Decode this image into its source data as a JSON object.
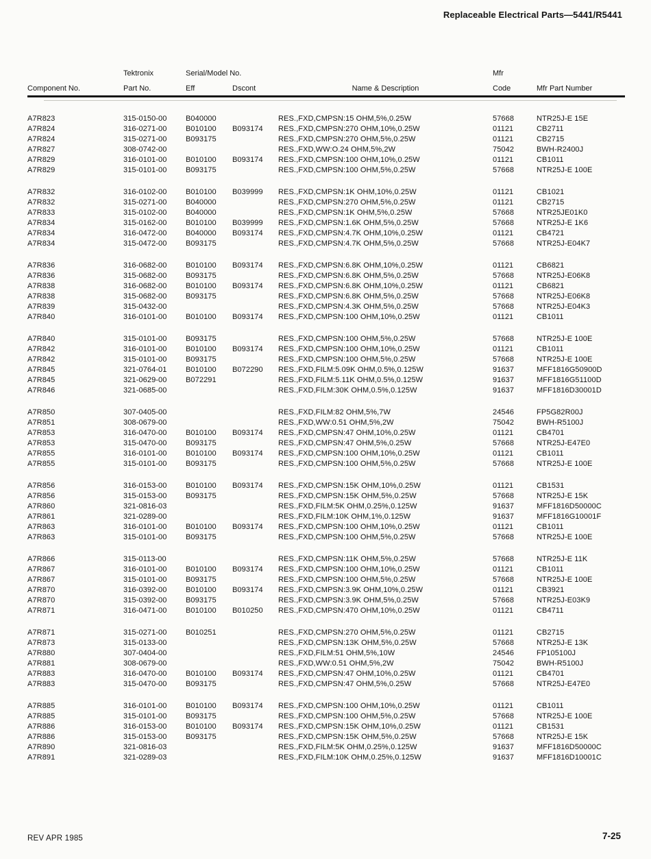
{
  "colors": {
    "ink": "#141414",
    "paper": "#fbfbf9"
  },
  "header": {
    "title": "Replaceable Electrical Parts—5441/R5441"
  },
  "footer": {
    "left": "REV APR 1985",
    "right": "7-25"
  },
  "table": {
    "headers": {
      "component_no": "Component No.",
      "tektronix": "Tektronix",
      "part_no": "Part No.",
      "serial_model": "Serial/Model No.",
      "eff": "Eff",
      "dscont": "Dscont",
      "name_description": "Name & Description",
      "mfr": "Mfr",
      "code": "Code",
      "mfr_part_number": "Mfr Part Number"
    },
    "groups": [
      [
        [
          "A7R823",
          "315-0150-00",
          "B040000",
          "",
          "RES.,FXD,CMPSN:15 OHM,5%,0.25W",
          "57668",
          "NTR25J-E 15E"
        ],
        [
          "A7R824",
          "316-0271-00",
          "B010100",
          "B093174",
          "RES.,FXD,CMPSN:270 OHM,10%,0.25W",
          "01121",
          "CB2711"
        ],
        [
          "A7R824",
          "315-0271-00",
          "B093175",
          "",
          "RES.,FXD,CMPSN:270 OHM,5%,0.25W",
          "01121",
          "CB2715"
        ],
        [
          "A7R827",
          "308-0742-00",
          "",
          "",
          "RES.,FXD,WW:O.24 OHM,5%,2W",
          "75042",
          "BWH-R2400J"
        ],
        [
          "A7R829",
          "316-0101-00",
          "B010100",
          "B093174",
          "RES.,FXD,CMPSN:100 OHM,10%,0.25W",
          "01121",
          "CB1011"
        ],
        [
          "A7R829",
          "315-0101-00",
          "B093175",
          "",
          "RES.,FXD,CMPSN:100 OHM,5%,0.25W",
          "57668",
          "NTR25J-E 100E"
        ]
      ],
      [
        [
          "A7R832",
          "316-0102-00",
          "B010100",
          "B039999",
          "RES.,FXD,CMPSN:1K OHM,10%,0.25W",
          "01121",
          "CB1021"
        ],
        [
          "A7R832",
          "315-0271-00",
          "B040000",
          "",
          "RES.,FXD,CMPSN:270 OHM,5%,0.25W",
          "01121",
          "CB2715"
        ],
        [
          "A7R833",
          "315-0102-00",
          "B040000",
          "",
          "RES.,FXD,CMPSN:1K OHM,5%,0.25W",
          "57668",
          "NTR25JE01K0"
        ],
        [
          "A7R834",
          "315-0162-00",
          "B010100",
          "B039999",
          "RES.,FXD,CMPSN:1.6K OHM,5%,0.25W",
          "57668",
          "NTR25J-E 1K6"
        ],
        [
          "A7R834",
          "316-0472-00",
          "B040000",
          "B093174",
          "RES.,FXD,CMPSN:4.7K OHM,10%,0.25W",
          "01121",
          "CB4721"
        ],
        [
          "A7R834",
          "315-0472-00",
          "B093175",
          "",
          "RES.,FXD,CMPSN:4.7K OHM,5%,0.25W",
          "57668",
          "NTR25J-E04K7"
        ]
      ],
      [
        [
          "A7R836",
          "316-0682-00",
          "B010100",
          "B093174",
          "RES.,FXD,CMPSN:6.8K OHM,10%,0.25W",
          "01121",
          "CB6821"
        ],
        [
          "A7R836",
          "315-0682-00",
          "B093175",
          "",
          "RES.,FXD,CMPSN:6.8K OHM,5%,0.25W",
          "57668",
          "NTR25J-E06K8"
        ],
        [
          "A7R838",
          "316-0682-00",
          "B010100",
          "B093174",
          "RES.,FXD,CMPSN:6.8K OHM,10%,0.25W",
          "01121",
          "CB6821"
        ],
        [
          "A7R838",
          "315-0682-00",
          "B093175",
          "",
          "RES.,FXD,CMPSN:6.8K OHM,5%,0.25W",
          "57668",
          "NTR25J-E06K8"
        ],
        [
          "A7R839",
          "315-0432-00",
          "",
          "",
          "RES.,FXD,CMPSN:4.3K OHM,5%,0.25W",
          "57668",
          "NTR25J-E04K3"
        ],
        [
          "A7R840",
          "316-0101-00",
          "B010100",
          "B093174",
          "RES.,FXD,CMPSN:100 OHM,10%,0.25W",
          "01121",
          "CB1011"
        ]
      ],
      [
        [
          "A7R840",
          "315-0101-00",
          "B093175",
          "",
          "RES.,FXD,CMPSN:100 OHM,5%,0.25W",
          "57668",
          "NTR25J-E 100E"
        ],
        [
          "A7R842",
          "316-0101-00",
          "B010100",
          "B093174",
          "RES.,FXD,CMPSN:100 OHM,10%,0.25W",
          "01121",
          "CB1011"
        ],
        [
          "A7R842",
          "315-0101-00",
          "B093175",
          "",
          "RES.,FXD,CMPSN:100 OHM,5%,0.25W",
          "57668",
          "NTR25J-E 100E"
        ],
        [
          "A7R845",
          "321-0764-01",
          "B010100",
          "B072290",
          "RES.,FXD,FILM:5.09K OHM,0.5%,0.125W",
          "91637",
          "MFF1816G50900D"
        ],
        [
          "A7R845",
          "321-0629-00",
          "B072291",
          "",
          "RES.,FXD,FILM:5.11K OHM,0.5%,0.125W",
          "91637",
          "MFF1816G51100D"
        ],
        [
          "A7R846",
          "321-0685-00",
          "",
          "",
          "RES.,FXD,FILM:30K OHM,0.5%,0.125W",
          "91637",
          "MFF1816D30001D"
        ]
      ],
      [
        [
          "A7R850",
          "307-0405-00",
          "",
          "",
          "RES.,FXD,FILM:82 OHM,5%,7W",
          "24546",
          "FP5G82R00J"
        ],
        [
          "A7R851",
          "308-0679-00",
          "",
          "",
          "RES.,FXD,WW:0.51 OHM,5%,2W",
          "75042",
          "BWH-R5100J"
        ],
        [
          "A7R853",
          "316-0470-00",
          "B010100",
          "B093174",
          "RES.,FXD,CMPSN:47 OHM,10%,0.25W",
          "01121",
          "CB4701"
        ],
        [
          "A7R853",
          "315-0470-00",
          "B093175",
          "",
          "RES.,FXD,CMPSN:47 OHM,5%,0.25W",
          "57668",
          "NTR25J-E47E0"
        ],
        [
          "A7R855",
          "316-0101-00",
          "B010100",
          "B093174",
          "RES.,FXD,CMPSN:100 OHM,10%,0.25W",
          "01121",
          "CB1011"
        ],
        [
          "A7R855",
          "315-0101-00",
          "B093175",
          "",
          "RES.,FXD,CMPSN:100 OHM,5%,0.25W",
          "57668",
          "NTR25J-E 100E"
        ]
      ],
      [
        [
          "A7R856",
          "316-0153-00",
          "B010100",
          "B093174",
          "RES.,FXD,CMPSN:15K OHM,10%,0.25W",
          "01121",
          "CB1531"
        ],
        [
          "A7R856",
          "315-0153-00",
          "B093175",
          "",
          "RES.,FXD,CMPSN:15K OHM,5%,0.25W",
          "57668",
          "NTR25J-E 15K"
        ],
        [
          "A7R860",
          "321-0816-03",
          "",
          "",
          "RES.,FXD,FILM:5K OHM,0.25%,0.125W",
          "91637",
          "MFF1816D50000C"
        ],
        [
          "A7R861",
          "321-0289-00",
          "",
          "",
          "RES.,FXD,FILM:10K OHM,1%,0.125W",
          "91637",
          "MFF1816G10001F"
        ],
        [
          "A7R863",
          "316-0101-00",
          "B010100",
          "B093174",
          "RES.,FXD,CMPSN:100 OHM,10%,0.25W",
          "01121",
          "CB1011"
        ],
        [
          "A7R863",
          "315-0101-00",
          "B093175",
          "",
          "RES.,FXD,CMPSN:100 OHM,5%,0.25W",
          "57668",
          "NTR25J-E 100E"
        ]
      ],
      [
        [
          "A7R866",
          "315-0113-00",
          "",
          "",
          "RES.,FXD,CMPSN:11K OHM,5%,0.25W",
          "57668",
          "NTR25J-E 11K"
        ],
        [
          "A7R867",
          "316-0101-00",
          "B010100",
          "B093174",
          "RES.,FXD,CMPSN:100 OHM,10%,0.25W",
          "01121",
          "CB1011"
        ],
        [
          "A7R867",
          "315-0101-00",
          "B093175",
          "",
          "RES.,FXD,CMPSN:100 OHM,5%,0.25W",
          "57668",
          "NTR25J-E 100E"
        ],
        [
          "A7R870",
          "316-0392-00",
          "B010100",
          "B093174",
          "RES.,FXD,CMPSN:3.9K OHM,10%,0.25W",
          "01121",
          "CB3921"
        ],
        [
          "A7R870",
          "315-0392-00",
          "B093175",
          "",
          "RES.,FXD,CMPSN:3.9K OHM,5%,0.25W",
          "57668",
          "NTR25J-E03K9"
        ],
        [
          "A7R871",
          "316-0471-00",
          "B010100",
          "B010250",
          "RES.,FXD,CMPSN:470 OHM,10%,0.25W",
          "01121",
          "CB4711"
        ]
      ],
      [
        [
          "A7R871",
          "315-0271-00",
          "B010251",
          "",
          "RES.,FXD,CMPSN:270 OHM,5%,0.25W",
          "01121",
          "CB2715"
        ],
        [
          "A7R873",
          "315-0133-00",
          "",
          "",
          "RES.,FXD,CMPSN:13K OHM,5%,0.25W",
          "57668",
          "NTR25J-E 13K"
        ],
        [
          "A7R880",
          "307-0404-00",
          "",
          "",
          "RES.,FXD,FILM:51 OHM,5%,10W",
          "24546",
          "FP105100J"
        ],
        [
          "A7R881",
          "308-0679-00",
          "",
          "",
          "RES.,FXD,WW:0.51 OHM,5%,2W",
          "75042",
          "BWH-R5100J"
        ],
        [
          "A7R883",
          "316-0470-00",
          "B010100",
          "B093174",
          "RES.,FXD,CMPSN:47 OHM,10%,0.25W",
          "01121",
          "CB4701"
        ],
        [
          "A7R883",
          "315-0470-00",
          "B093175",
          "",
          "RES.,FXD,CMPSN:47 OHM,5%,0.25W",
          "57668",
          "NTR25J-E47E0"
        ]
      ],
      [
        [
          "A7R885",
          "316-0101-00",
          "B010100",
          "B093174",
          "RES.,FXD,CMPSN:100 OHM,10%,0.25W",
          "01121",
          "CB1011"
        ],
        [
          "A7R885",
          "315-0101-00",
          "B093175",
          "",
          "RES.,FXD,CMPSN:100 OHM,5%,0.25W",
          "57668",
          "NTR25J-E 100E"
        ],
        [
          "A7R886",
          "316-0153-00",
          "B010100",
          "B093174",
          "RES.,FXD,CMPSN:15K OHM,10%,0.25W",
          "01121",
          "CB1531"
        ],
        [
          "A7R886",
          "315-0153-00",
          "B093175",
          "",
          "RES.,FXD,CMPSN:15K OHM,5%,0.25W",
          "57668",
          "NTR25J-E 15K"
        ],
        [
          "A7R890",
          "321-0816-03",
          "",
          "",
          "RES.,FXD,FILM:5K OHM,0.25%,0.125W",
          "91637",
          "MFF1816D50000C"
        ],
        [
          "A7R891",
          "321-0289-03",
          "",
          "",
          "RES.,FXD,FILM:10K OHM,0.25%,0.125W",
          "91637",
          "MFF1816D10001C"
        ]
      ]
    ]
  }
}
